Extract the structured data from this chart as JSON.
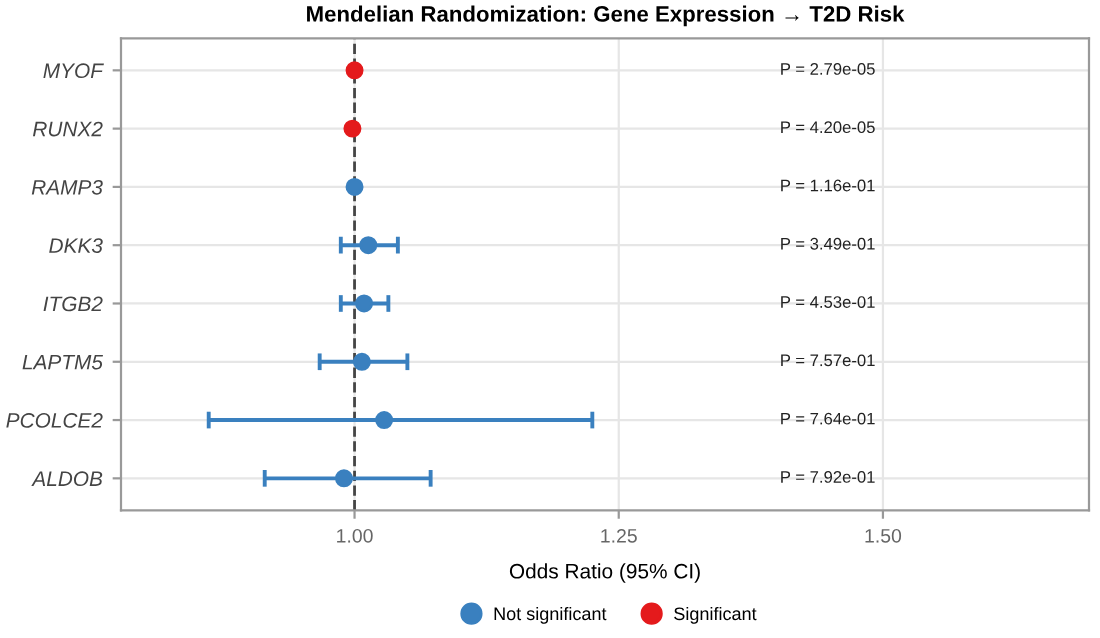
{
  "chart_data": {
    "type": "scatter",
    "orientation": "horizontal",
    "title": "Mendelian Randomization: Gene Expression → T2D Risk",
    "xlabel": "Odds Ratio (95% CI)",
    "categories": [
      "MYOF",
      "RUNX2",
      "RAMP3",
      "DKK3",
      "ITGB2",
      "LAPTM5",
      "PCOLCE2",
      "ALDOB"
    ],
    "series": [
      {
        "name": "Not significant",
        "color": "#3a80bf",
        "values": [
          null,
          null,
          1.0,
          1.013,
          1.009,
          1.007,
          1.028,
          0.99
        ],
        "errors": [
          null,
          null,
          null,
          [
            0.987,
            1.041
          ],
          [
            0.987,
            1.032
          ],
          [
            0.967,
            1.05
          ],
          [
            0.862,
            1.225
          ],
          [
            0.915,
            1.072
          ]
        ]
      },
      {
        "name": "Significant",
        "color": "#e41a1c",
        "values": [
          1.0,
          0.998,
          null,
          null,
          null,
          null,
          null,
          null
        ],
        "errors": [
          null,
          null,
          null,
          null,
          null,
          null,
          null,
          null
        ]
      }
    ],
    "xlim": [
      0.779,
      1.695
    ],
    "xticks": [
      {
        "value": 1.0,
        "label": "1.00"
      },
      {
        "value": 1.25,
        "label": "1.25"
      },
      {
        "value": 1.5,
        "label": "1.50"
      }
    ],
    "ref_lines": [
      {
        "axis": "x",
        "value": 1.0,
        "line_style": "dashed",
        "color": "#444444"
      }
    ],
    "annotations": [
      "P = 2.79e-05",
      "P = 4.20e-05",
      "P = 1.16e-01",
      "P = 3.49e-01",
      "P = 4.53e-01",
      "P = 7.57e-01",
      "P = 7.64e-01",
      "P = 7.92e-01"
    ],
    "grid": true,
    "legend": "bottom",
    "marker": "circle"
  }
}
